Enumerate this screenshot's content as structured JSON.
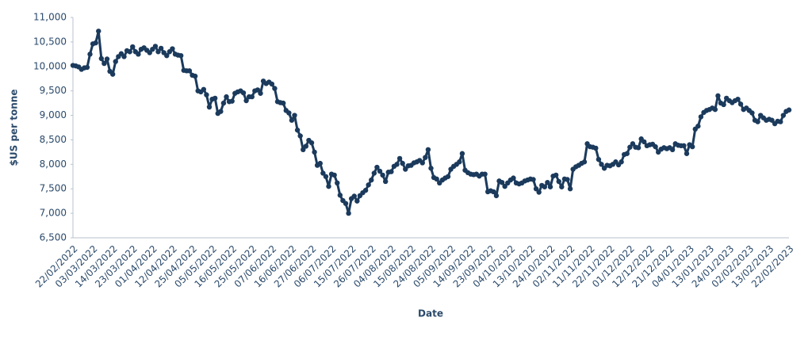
{
  "chart_data": {
    "type": "line",
    "xlabel": "Date",
    "ylabel": "$US per tonne",
    "categories": [
      "22/02/2022",
      null,
      null,
      null,
      null,
      null,
      null,
      "03/03/2022",
      null,
      null,
      null,
      null,
      null,
      null,
      "14/03/2022",
      null,
      null,
      null,
      null,
      null,
      null,
      "23/03/2022",
      null,
      null,
      null,
      null,
      null,
      null,
      "01/04/2022",
      null,
      null,
      null,
      null,
      null,
      null,
      "12/04/2022",
      null,
      null,
      null,
      null,
      null,
      null,
      "25/04/2022",
      null,
      null,
      null,
      null,
      null,
      null,
      "05/05/2022",
      null,
      null,
      null,
      null,
      null,
      null,
      "16/05/2022",
      null,
      null,
      null,
      null,
      null,
      null,
      "25/05/2022",
      null,
      null,
      null,
      null,
      null,
      null,
      "07/06/2022",
      null,
      null,
      null,
      null,
      null,
      null,
      "16/06/2022",
      null,
      null,
      null,
      null,
      null,
      null,
      "27/06/2022",
      null,
      null,
      null,
      null,
      null,
      null,
      "06/07/2022",
      null,
      null,
      null,
      null,
      null,
      null,
      "15/07/2022",
      null,
      null,
      null,
      null,
      null,
      null,
      "26/07/2022",
      null,
      null,
      null,
      null,
      null,
      null,
      "04/08/2022",
      null,
      null,
      null,
      null,
      null,
      null,
      "15/08/2022",
      null,
      null,
      null,
      null,
      null,
      null,
      "24/08/2022",
      null,
      null,
      null,
      null,
      null,
      null,
      "05/09/2022",
      null,
      null,
      null,
      null,
      null,
      null,
      "14/09/2022",
      null,
      null,
      null,
      null,
      null,
      null,
      "23/09/2022",
      null,
      null,
      null,
      null,
      null,
      null,
      "04/10/2022",
      null,
      null,
      null,
      null,
      null,
      null,
      "13/10/2022",
      null,
      null,
      null,
      null,
      null,
      null,
      "24/10/2022",
      null,
      null,
      null,
      null,
      null,
      null,
      "02/11/2022",
      null,
      null,
      null,
      null,
      null,
      null,
      "11/11/2022",
      null,
      null,
      null,
      null,
      null,
      null,
      "22/11/2022",
      null,
      null,
      null,
      null,
      null,
      null,
      "01/12/2022",
      null,
      null,
      null,
      null,
      null,
      null,
      "12/12/2022",
      null,
      null,
      null,
      null,
      null,
      null,
      "21/12/2022",
      null,
      null,
      null,
      null,
      null,
      null,
      "04/01/2023",
      null,
      null,
      null,
      null,
      null,
      null,
      "13/01/2023",
      null,
      null,
      null,
      null,
      null,
      null,
      "24/01/2023",
      null,
      null,
      null,
      null,
      null,
      null,
      "02/02/2023",
      null,
      null,
      null,
      null,
      null,
      null,
      "13/02/2023",
      null,
      null,
      null,
      null,
      null,
      null,
      "22/02/2023"
    ],
    "series": [
      {
        "color": "#1b3a5c",
        "values": [
          10020,
          10010,
          9990,
          9940,
          9970,
          9980,
          10250,
          10460,
          10480,
          10720,
          10160,
          10060,
          10150,
          9900,
          9840,
          10100,
          10200,
          10260,
          10200,
          10320,
          10300,
          10400,
          10300,
          10250,
          10350,
          10380,
          10330,
          10280,
          10350,
          10410,
          10300,
          10370,
          10280,
          10220,
          10300,
          10360,
          10250,
          10230,
          10220,
          9920,
          9910,
          9910,
          9820,
          9800,
          9500,
          9480,
          9530,
          9420,
          9170,
          9330,
          9350,
          9040,
          9080,
          9250,
          9380,
          9280,
          9290,
          9450,
          9480,
          9500,
          9460,
          9300,
          9380,
          9380,
          9500,
          9520,
          9450,
          9700,
          9650,
          9680,
          9640,
          9550,
          9280,
          9260,
          9250,
          9100,
          9050,
          8900,
          9000,
          8700,
          8580,
          8300,
          8370,
          8490,
          8440,
          8250,
          7980,
          8020,
          7820,
          7750,
          7550,
          7800,
          7780,
          7620,
          7370,
          7260,
          7200,
          7000,
          7300,
          7350,
          7250,
          7360,
          7420,
          7470,
          7580,
          7680,
          7820,
          7940,
          7860,
          7780,
          7650,
          7840,
          7850,
          7960,
          8000,
          8120,
          8020,
          7900,
          7970,
          7980,
          8030,
          8050,
          8080,
          8030,
          8140,
          8300,
          7920,
          7730,
          7700,
          7620,
          7680,
          7720,
          7750,
          7900,
          7960,
          8000,
          8050,
          8220,
          7880,
          7830,
          7800,
          7790,
          7800,
          7760,
          7800,
          7800,
          7440,
          7460,
          7440,
          7360,
          7660,
          7630,
          7550,
          7620,
          7680,
          7720,
          7620,
          7600,
          7620,
          7660,
          7680,
          7700,
          7690,
          7500,
          7430,
          7570,
          7540,
          7630,
          7540,
          7760,
          7780,
          7650,
          7540,
          7700,
          7690,
          7500,
          7900,
          7950,
          7980,
          8020,
          8050,
          8420,
          8360,
          8350,
          8330,
          8100,
          8000,
          7920,
          7980,
          7970,
          8000,
          8050,
          7990,
          8050,
          8200,
          8220,
          8350,
          8420,
          8350,
          8340,
          8520,
          8460,
          8380,
          8400,
          8410,
          8360,
          8250,
          8310,
          8340,
          8320,
          8340,
          8300,
          8420,
          8390,
          8380,
          8380,
          8220,
          8400,
          8360,
          8720,
          8780,
          8970,
          9060,
          9100,
          9120,
          9150,
          9120,
          9400,
          9250,
          9220,
          9350,
          9300,
          9260,
          9300,
          9330,
          9230,
          9120,
          9150,
          9100,
          9050,
          8900,
          8870,
          9000,
          8950,
          8900,
          8920,
          8900,
          8830,
          8880,
          8870,
          9000,
          9080,
          9110
        ]
      }
    ],
    "ylim": [
      6500,
      11000
    ],
    "yticks": [
      {
        "value": 6500,
        "label": "6,500"
      },
      {
        "value": 7000,
        "label": "7,000"
      },
      {
        "value": 7500,
        "label": "7,500"
      },
      {
        "value": 8000,
        "label": "8,000"
      },
      {
        "value": 8500,
        "label": "8,500"
      },
      {
        "value": 9000,
        "label": "9,000"
      },
      {
        "value": 9500,
        "label": "9,500"
      },
      {
        "value": 10000,
        "label": "10,000"
      },
      {
        "value": 10500,
        "label": "10,500"
      },
      {
        "value": 11000,
        "label": "11,000"
      }
    ],
    "grid": false
  }
}
